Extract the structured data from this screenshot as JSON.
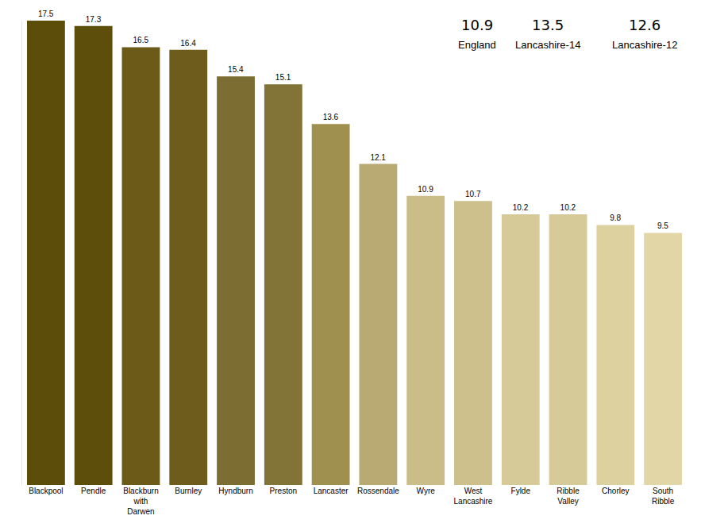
{
  "chart_data": {
    "type": "bar",
    "categories": [
      "Blackpool",
      "Pendle",
      "Blackburn with Darwen",
      "Burnley",
      "Hyndburn",
      "Preston",
      "Lancaster",
      "Rossendale",
      "Wyre",
      "West Lancashire",
      "Fylde",
      "Ribble Valley",
      "Chorley",
      "South Ribble"
    ],
    "values": [
      17.5,
      17.3,
      16.5,
      16.4,
      15.4,
      15.1,
      13.6,
      12.1,
      10.9,
      10.7,
      10.2,
      10.2,
      9.8,
      9.5
    ],
    "colors": [
      "#5c4d0a",
      "#5e4e0c",
      "#6b5a18",
      "#6d5c1c",
      "#7c6d33",
      "#827337",
      "#a09050",
      "#b8aa72",
      "#cbbd88",
      "#cdc08c",
      "#d6ca98",
      "#d6ca98",
      "#ddd19f",
      "#e2d6a6"
    ],
    "ylim": [
      0,
      17.5
    ],
    "grid": false,
    "data_labels": true,
    "tick_labels": "x",
    "summary": [
      {
        "value": 10.9,
        "label": "England"
      },
      {
        "value": 13.5,
        "label": "Lancashire-14"
      },
      {
        "value": 12.6,
        "label": "Lancashire-12"
      }
    ]
  }
}
